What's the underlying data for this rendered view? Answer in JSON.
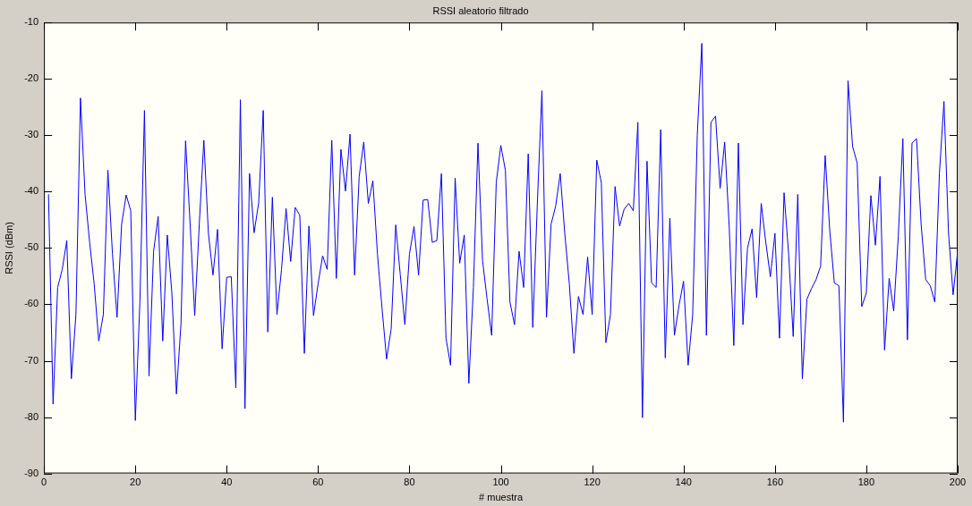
{
  "chart_data": {
    "type": "line",
    "title": "RSSI aleatorio filtrado",
    "xlabel": "# muestra",
    "ylabel": "RSSI (dBm)",
    "xlim": [
      0,
      200
    ],
    "xticks": [
      0,
      20,
      40,
      60,
      80,
      100,
      120,
      140,
      160,
      180,
      200
    ],
    "ylim": [
      -90,
      -10
    ],
    "yticks": [
      -90,
      -80,
      -70,
      -60,
      -50,
      -40,
      -30,
      -20,
      -10
    ],
    "grid": false,
    "legend": false,
    "marker": "none",
    "line_style": "solid",
    "x": [
      1,
      2,
      3,
      4,
      5,
      6,
      7,
      8,
      9,
      10,
      11,
      12,
      13,
      14,
      15,
      16,
      17,
      18,
      19,
      20,
      21,
      22,
      23,
      24,
      25,
      26,
      27,
      28,
      29,
      30,
      31,
      32,
      33,
      34,
      35,
      36,
      37,
      38,
      39,
      40,
      41,
      42,
      43,
      44,
      45,
      46,
      47,
      48,
      49,
      50,
      51,
      52,
      53,
      54,
      55,
      56,
      57,
      58,
      59,
      60,
      61,
      62,
      63,
      64,
      65,
      66,
      67,
      68,
      69,
      70,
      71,
      72,
      73,
      74,
      75,
      76,
      77,
      78,
      79,
      80,
      81,
      82,
      83,
      84,
      85,
      86,
      87,
      88,
      89,
      90,
      91,
      92,
      93,
      94,
      95,
      96,
      97,
      98,
      99,
      100,
      101,
      102,
      103,
      104,
      105,
      106,
      107,
      108,
      109,
      110,
      111,
      112,
      113,
      114,
      115,
      116,
      117,
      118,
      119,
      120,
      121,
      122,
      123,
      124,
      125,
      126,
      127,
      128,
      129,
      130,
      131,
      132,
      133,
      134,
      135,
      136,
      137,
      138,
      139,
      140,
      141,
      142,
      143,
      144,
      145,
      146,
      147,
      148,
      149,
      150,
      151,
      152,
      153,
      154,
      155,
      156,
      157,
      158,
      159,
      160,
      161,
      162,
      163,
      164,
      165,
      166,
      167,
      168,
      169,
      170,
      171,
      172,
      173,
      174,
      175,
      176,
      177,
      178,
      179,
      180,
      181,
      182,
      183,
      184,
      185,
      186,
      187,
      188,
      189,
      190,
      191,
      192,
      193,
      194,
      195,
      196,
      197,
      198,
      199,
      200
    ],
    "series": [
      {
        "color": "#0000ff",
        "values": [
          -40.5,
          -77.7,
          -57,
          -53.8,
          -48.7,
          -73.2,
          -61.8,
          -23.4,
          -40.5,
          -49,
          -56.4,
          -66.5,
          -61.8,
          -36.2,
          -51.1,
          -62.3,
          -45.8,
          -40.6,
          -43.4,
          -80.6,
          -59.6,
          -25.6,
          -72.7,
          -50.6,
          -44.4,
          -66.5,
          -47.7,
          -58,
          -75.9,
          -63.4,
          -31,
          -45.8,
          -62,
          -45.8,
          -30.9,
          -47.4,
          -54.8,
          -46.7,
          -67.9,
          -55.2,
          -55.1,
          -74.8,
          -23.7,
          -78.5,
          -36.8,
          -47.3,
          -42,
          -25.6,
          -64.9,
          -41,
          -61.8,
          -53.8,
          -43,
          -52.4,
          -42.8,
          -44.2,
          -68.7,
          -46.1,
          -62,
          -56.4,
          -51.4,
          -53.8,
          -30.9,
          -55.4,
          -32.5,
          -39.9,
          -29.8,
          -54.8,
          -37.3,
          -31.2,
          -42.1,
          -38.1,
          -51.1,
          -60.7,
          -69.7,
          -64.4,
          -45.9,
          -54.8,
          -63.6,
          -51.1,
          -46.2,
          -54.8,
          -41.5,
          -41.4,
          -49,
          -48.7,
          -36.8,
          -66,
          -70.8,
          -37.6,
          -52.7,
          -47.7,
          -74,
          -57,
          -31.4,
          -52.2,
          -59.1,
          -65.5,
          -38.4,
          -31.8,
          -36.2,
          -59.6,
          -63.6,
          -50.6,
          -57,
          -33.3,
          -64.1,
          -42,
          -22.1,
          -62.3,
          -45.8,
          -42.6,
          -36.8,
          -47.4,
          -56.4,
          -68.7,
          -58.6,
          -61.8,
          -51.6,
          -61.8,
          -34.4,
          -38.4,
          -66.8,
          -61.8,
          -39.1,
          -46.1,
          -43.1,
          -42.1,
          -43.4,
          -27.7,
          -80.1,
          -34.6,
          -56.2,
          -57,
          -29,
          -69.5,
          -44.7,
          -65.5,
          -60.2,
          -55.9,
          -70.8,
          -61.8,
          -30,
          -13.7,
          -65.5,
          -27.7,
          -26.6,
          -39.4,
          -31.2,
          -46.3,
          -67.3,
          -31.4,
          -63.6,
          -50,
          -46.6,
          -58.8,
          -42.1,
          -49,
          -55.1,
          -47.4,
          -66,
          -40.2,
          -51.1,
          -65.7,
          -40.5,
          -73.2,
          -59.1,
          -57.2,
          -55.6,
          -53.2,
          -33.6,
          -46.9,
          -56.2,
          -56.7,
          -80.9,
          -20.3,
          -32,
          -34.9,
          -60.4,
          -58,
          -40.7,
          -49.5,
          -37.3,
          -68.1,
          -55.4,
          -61.2,
          -47.9,
          -30.6,
          -66.3,
          -31.4,
          -30.6,
          -45.8,
          -55.6,
          -56.7,
          -59.6,
          -36.8,
          -24,
          -47.4,
          -58.3,
          -50.6
        ]
      }
    ]
  }
}
